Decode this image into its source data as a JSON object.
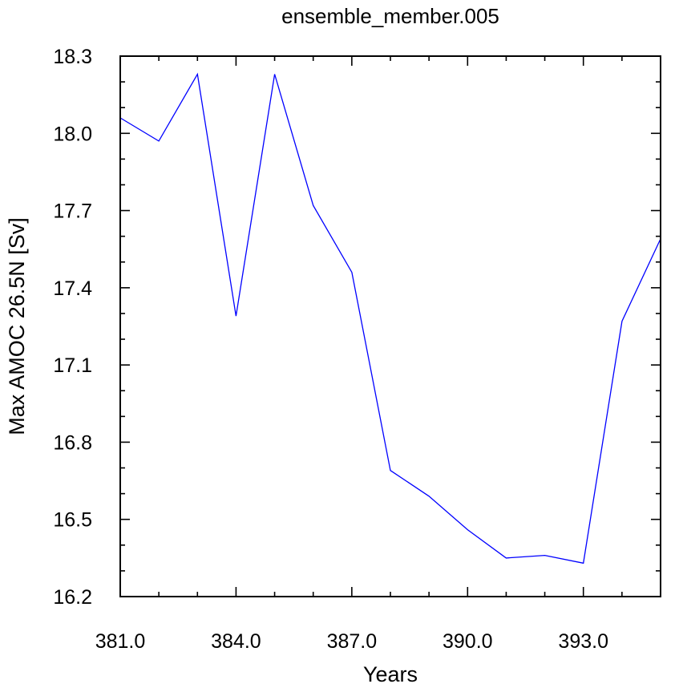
{
  "chart_data": {
    "type": "line",
    "title": "ensemble_member.005",
    "xlabel": "Years",
    "ylabel": "Max AMOC 26.5N [Sv]",
    "xlim": [
      381,
      395
    ],
    "ylim": [
      16.2,
      18.3
    ],
    "xticks": [
      381.0,
      384.0,
      387.0,
      390.0,
      393.0
    ],
    "xtick_labels": [
      "381.0",
      "384.0",
      "387.0",
      "390.0",
      "393.0"
    ],
    "yticks": [
      16.2,
      16.5,
      16.8,
      17.1,
      17.4,
      17.7,
      18.0,
      18.3
    ],
    "ytick_labels": [
      "16.2",
      "16.5",
      "16.8",
      "17.1",
      "17.4",
      "17.7",
      "18.0",
      "18.3"
    ],
    "grid": false,
    "series": [
      {
        "color": "#0000ff",
        "x": [
          381,
          382,
          383,
          384,
          385,
          386,
          387,
          388,
          389,
          390,
          391,
          392,
          393,
          394,
          395
        ],
        "y": [
          18.06,
          17.97,
          18.23,
          17.29,
          18.23,
          17.72,
          17.46,
          16.69,
          16.59,
          16.46,
          16.35,
          16.36,
          16.33,
          17.27,
          17.59
        ]
      }
    ]
  }
}
